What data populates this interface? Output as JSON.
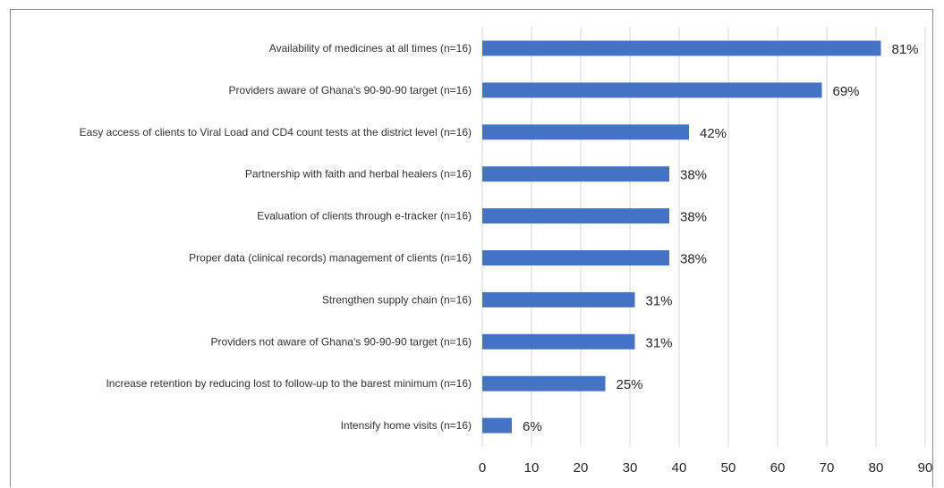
{
  "chart_data": {
    "type": "bar",
    "orientation": "horizontal",
    "categories": [
      "Availability of medicines at all times (n=16)",
      "Providers aware of Ghana's 90-90-90 target (n=16)",
      "Easy access of clients to Viral Load and CD4 count tests at the district level (n=16)",
      "Partnership with faith and herbal healers (n=16)",
      "Evaluation of clients through e-tracker (n=16)",
      "Proper data (clinical records) management of clients (n=16)",
      "Strengthen supply chain (n=16)",
      "Providers not aware of Ghana's 90-90-90 target (n=16)",
      "Increase retention by reducing lost to follow-up to the barest minimum (n=16)",
      "Intensify home visits (n=16)"
    ],
    "values": [
      81,
      69,
      42,
      38,
      38,
      38,
      31,
      31,
      25,
      6
    ],
    "data_labels": [
      "81%",
      "69%",
      "42%",
      "38%",
      "38%",
      "38%",
      "31%",
      "31%",
      "25%",
      "6%"
    ],
    "xlim": [
      0,
      90
    ],
    "x_ticks": [
      0,
      10,
      20,
      30,
      40,
      50,
      60,
      70,
      80,
      90
    ],
    "x_tick_labels": [
      "0",
      "10",
      "20",
      "30",
      "40",
      "50",
      "60",
      "70",
      "80",
      "90"
    ],
    "grid": true,
    "bar_color": "#4472c4",
    "grid_color": "#d9d9d9",
    "title": "",
    "xlabel": "",
    "ylabel": ""
  }
}
